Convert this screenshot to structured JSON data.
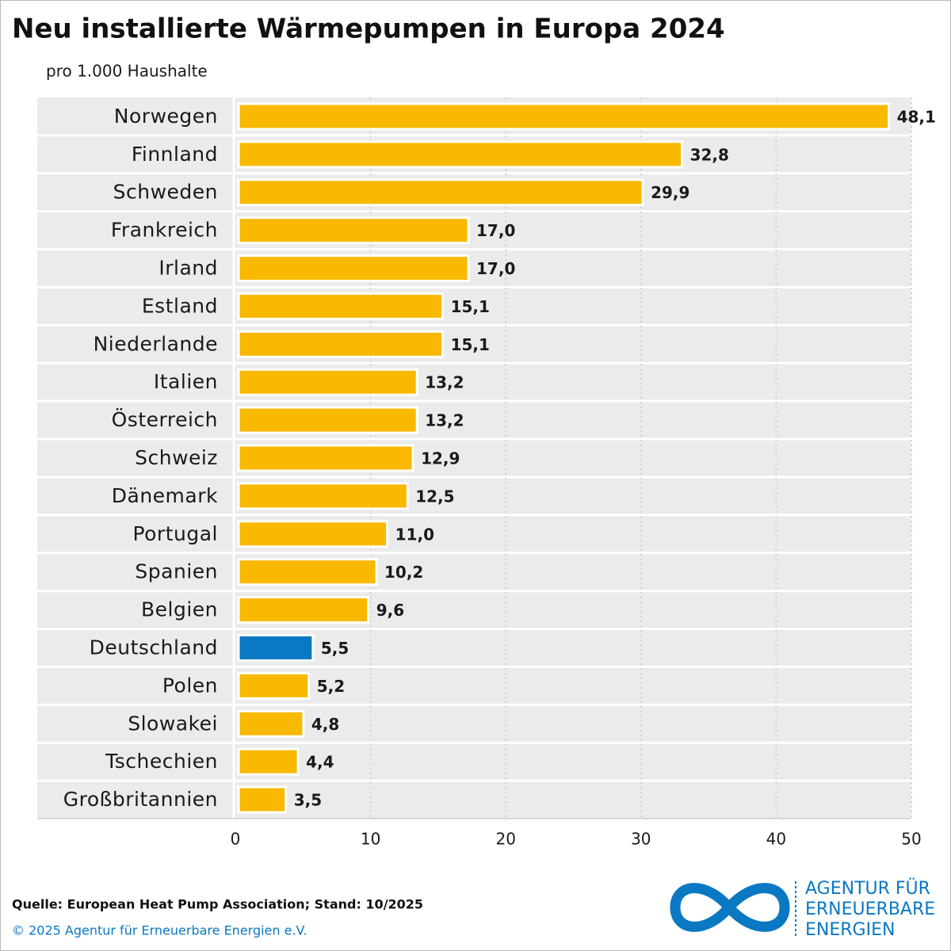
{
  "chart_data": {
    "type": "barh",
    "title": "Neu installierte Wärmepumpen in Europa 2024",
    "subtitle": "pro 1.000 Haushalte",
    "categories": [
      "Norwegen",
      "Finnland",
      "Schweden",
      "Frankreich",
      "Irland",
      "Estland",
      "Niederlande",
      "Italien",
      "Österreich",
      "Schweiz",
      "Dänemark",
      "Portugal",
      "Spanien",
      "Belgien",
      "Deutschland",
      "Polen",
      "Slowakei",
      "Tschechien",
      "Großbritannien"
    ],
    "values": [
      48.1,
      32.8,
      29.9,
      17.0,
      17.0,
      15.1,
      15.1,
      13.2,
      13.2,
      12.9,
      12.5,
      11.0,
      10.2,
      9.6,
      5.5,
      5.2,
      4.8,
      4.4,
      3.5
    ],
    "value_labels": [
      "48,1",
      "32,8",
      "29,9",
      "17,0",
      "17,0",
      "15,1",
      "15,1",
      "13,2",
      "13,2",
      "12,9",
      "12,5",
      "11,0",
      "10,2",
      "9,6",
      "5,5",
      "5,2",
      "4,8",
      "4,4",
      "3,5"
    ],
    "colors": [
      "#f9b900",
      "#f9b900",
      "#f9b900",
      "#f9b900",
      "#f9b900",
      "#f9b900",
      "#f9b900",
      "#f9b900",
      "#f9b900",
      "#f9b900",
      "#f9b900",
      "#f9b900",
      "#f9b900",
      "#f9b900",
      "#0a78c2",
      "#f9b900",
      "#f9b900",
      "#f9b900",
      "#f9b900"
    ],
    "xlim": [
      0,
      50
    ],
    "xticks": [
      0,
      10,
      20,
      30,
      40,
      50
    ],
    "grid": true
  },
  "footer": {
    "source": "Quelle: European Heat Pump Association; Stand: 10/2025",
    "copyright": "© 2025 Agentur für Erneuerbare Energien e.V."
  },
  "logo": {
    "lines": [
      "AGENTUR FÜR",
      "ERNEUERBARE",
      "ENERGIEN"
    ]
  }
}
